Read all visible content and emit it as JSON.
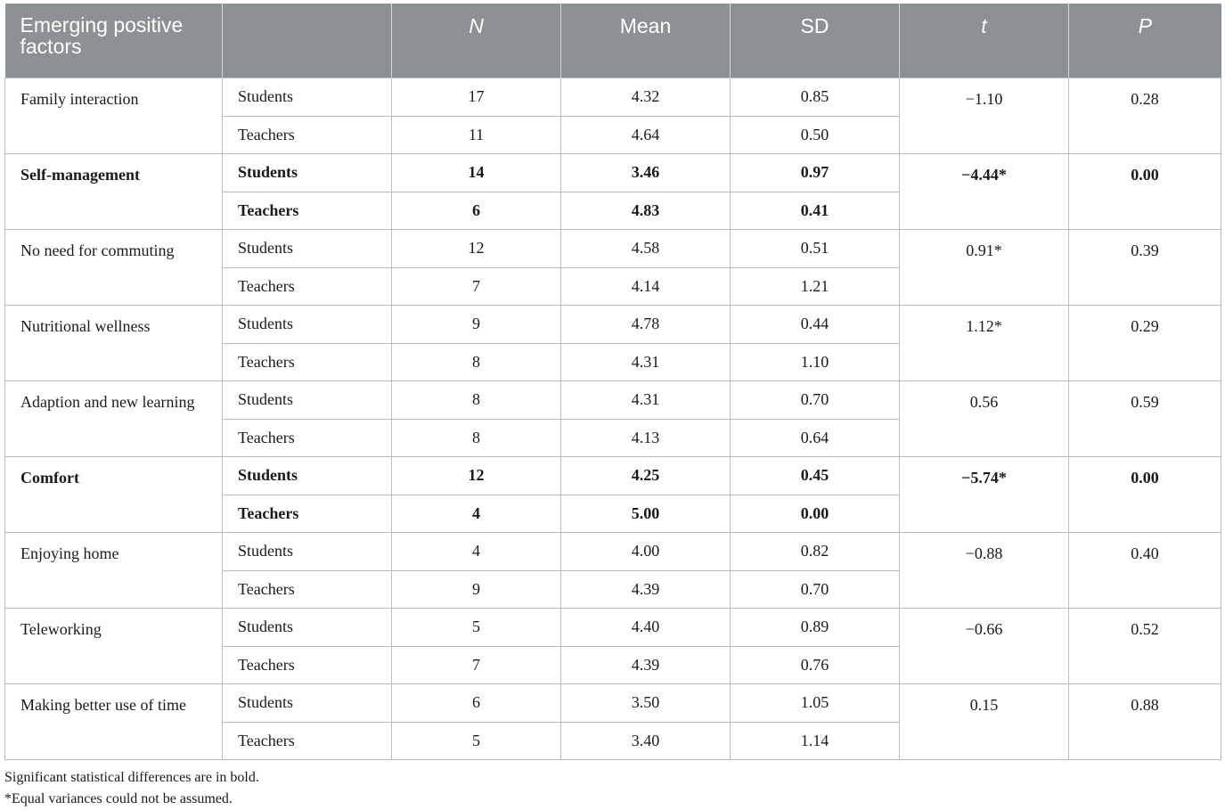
{
  "table": {
    "headers": [
      "Emerging positive factors",
      "",
      "N",
      "Mean",
      "SD",
      "t",
      "P"
    ],
    "rows": [
      {
        "factor": "Family interaction",
        "bold": false,
        "t": "−1.10",
        "p": "0.28",
        "groups": [
          {
            "group": "Students",
            "n": "17",
            "mean": "4.32",
            "sd": "0.85"
          },
          {
            "group": "Teachers",
            "n": "11",
            "mean": "4.64",
            "sd": "0.50"
          }
        ]
      },
      {
        "factor": "Self-management",
        "bold": true,
        "t": "−4.44*",
        "p": "0.00",
        "groups": [
          {
            "group": "Students",
            "n": "14",
            "mean": "3.46",
            "sd": "0.97"
          },
          {
            "group": "Teachers",
            "n": "6",
            "mean": "4.83",
            "sd": "0.41"
          }
        ]
      },
      {
        "factor": "No need for commuting",
        "bold": false,
        "t": "0.91*",
        "p": "0.39",
        "groups": [
          {
            "group": "Students",
            "n": "12",
            "mean": "4.58",
            "sd": "0.51"
          },
          {
            "group": "Teachers",
            "n": "7",
            "mean": "4.14",
            "sd": "1.21"
          }
        ]
      },
      {
        "factor": "Nutritional wellness",
        "bold": false,
        "t": "1.12*",
        "p": "0.29",
        "groups": [
          {
            "group": "Students",
            "n": "9",
            "mean": "4.78",
            "sd": "0.44"
          },
          {
            "group": "Teachers",
            "n": "8",
            "mean": "4.31",
            "sd": "1.10"
          }
        ]
      },
      {
        "factor": "Adaption and new learning",
        "bold": false,
        "t": "0.56",
        "p": "0.59",
        "groups": [
          {
            "group": "Students",
            "n": "8",
            "mean": "4.31",
            "sd": "0.70"
          },
          {
            "group": "Teachers",
            "n": "8",
            "mean": "4.13",
            "sd": "0.64"
          }
        ]
      },
      {
        "factor": "Comfort",
        "bold": true,
        "t": "−5.74*",
        "p": "0.00",
        "groups": [
          {
            "group": "Students",
            "n": "12",
            "mean": "4.25",
            "sd": "0.45"
          },
          {
            "group": "Teachers",
            "n": "4",
            "mean": "5.00",
            "sd": "0.00"
          }
        ]
      },
      {
        "factor": "Enjoying home",
        "bold": false,
        "t": "−0.88",
        "p": "0.40",
        "groups": [
          {
            "group": "Students",
            "n": "4",
            "mean": "4.00",
            "sd": "0.82"
          },
          {
            "group": "Teachers",
            "n": "9",
            "mean": "4.39",
            "sd": "0.70"
          }
        ]
      },
      {
        "factor": "Teleworking",
        "bold": false,
        "t": "−0.66",
        "p": "0.52",
        "groups": [
          {
            "group": "Students",
            "n": "5",
            "mean": "4.40",
            "sd": "0.89"
          },
          {
            "group": "Teachers",
            "n": "7",
            "mean": "4.39",
            "sd": "0.76"
          }
        ]
      },
      {
        "factor": "Making better use of time",
        "bold": false,
        "t": "0.15",
        "p": "0.88",
        "groups": [
          {
            "group": "Students",
            "n": "6",
            "mean": "3.50",
            "sd": "1.05"
          },
          {
            "group": "Teachers",
            "n": "5",
            "mean": "3.40",
            "sd": "1.14"
          }
        ]
      }
    ]
  },
  "notes": [
    "Significant statistical differences are in bold.",
    "*Equal variances could not be assumed."
  ],
  "colors": {
    "header_bg": "#8c9193",
    "header_text": "#ffffff",
    "border": "#b9bcbe"
  }
}
